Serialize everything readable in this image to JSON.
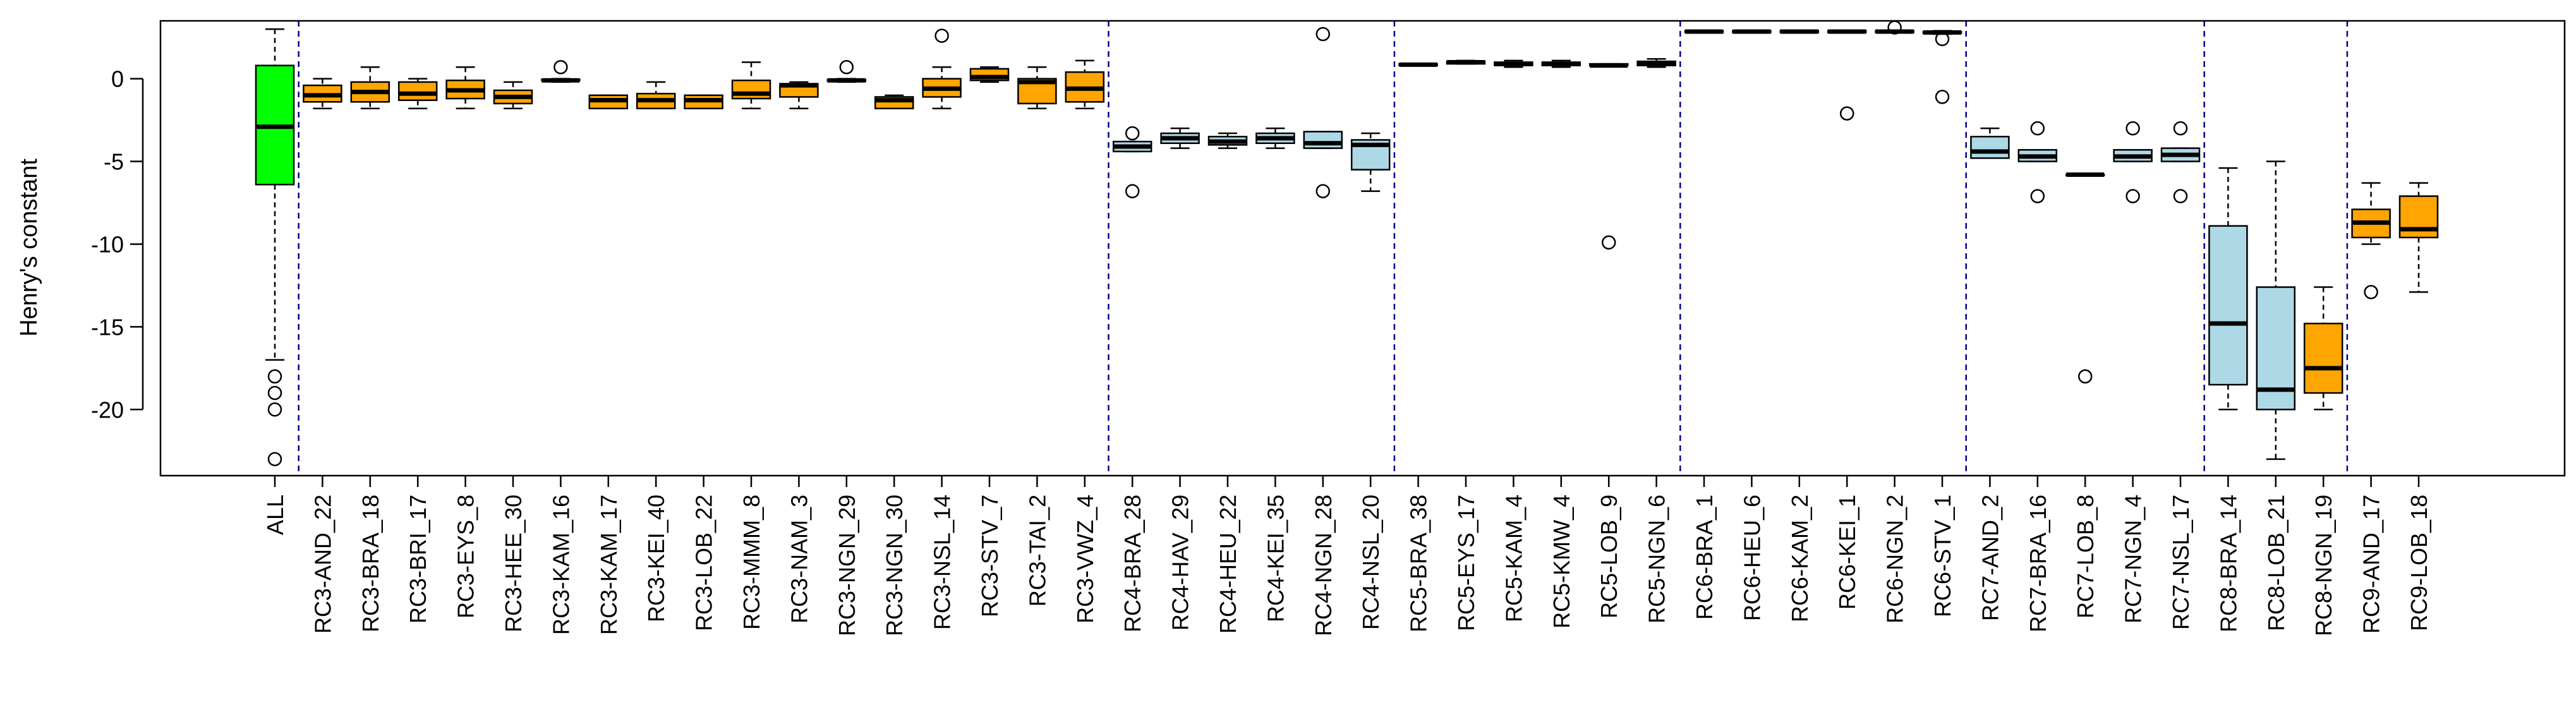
{
  "chart_data": {
    "type": "boxplot",
    "title": "",
    "xlabel": "",
    "ylabel": "Henry's constant",
    "ylim": [
      -24,
      3.5
    ],
    "yticks": [
      0,
      -5,
      -10,
      -15,
      -20
    ],
    "grid": false,
    "legend": "none",
    "colors": {
      "all": "#00ff00",
      "orange": "#ffa500",
      "lightblue": "#add8e6",
      "separator": "#00008b",
      "stroke": "#000000"
    },
    "separators_after": [
      "ALL",
      "RC3-VWZ_4",
      "RC4-NSL_20",
      "RC5-NGN_6",
      "RC6-STV_1",
      "RC7-NSL_17",
      "RC8-NGN_19"
    ],
    "boxes": [
      {
        "label": "ALL",
        "color": "all",
        "whislo": -17,
        "q1": -6.4,
        "med": -2.9,
        "q3": 0.8,
        "whishi": 3.0,
        "fliers": [
          -18,
          -19,
          -20,
          -23
        ]
      },
      {
        "label": "RC3-AND_22",
        "color": "orange",
        "whislo": -1.8,
        "q1": -1.4,
        "med": -1.0,
        "q3": -0.4,
        "whishi": 0.0,
        "fliers": []
      },
      {
        "label": "RC3-BRA_18",
        "color": "orange",
        "whislo": -1.8,
        "q1": -1.4,
        "med": -0.8,
        "q3": -0.2,
        "whishi": 0.7,
        "fliers": []
      },
      {
        "label": "RC3-BRI_17",
        "color": "orange",
        "whislo": -1.8,
        "q1": -1.3,
        "med": -0.9,
        "q3": -0.2,
        "whishi": 0.0,
        "fliers": []
      },
      {
        "label": "RC3-EYS_8",
        "color": "orange",
        "whislo": -1.8,
        "q1": -1.2,
        "med": -0.7,
        "q3": -0.1,
        "whishi": 0.7,
        "fliers": []
      },
      {
        "label": "RC3-HEE_30",
        "color": "orange",
        "whislo": -1.8,
        "q1": -1.5,
        "med": -1.1,
        "q3": -0.7,
        "whishi": -0.2,
        "fliers": []
      },
      {
        "label": "RC3-KAM_16",
        "color": "orange",
        "whislo": -0.2,
        "q1": -0.1,
        "med": -0.1,
        "q3": -0.05,
        "whishi": 0.0,
        "fliers": [
          0.7
        ]
      },
      {
        "label": "RC3-KAM_17",
        "color": "orange",
        "whislo": -1.8,
        "q1": -1.8,
        "med": -1.3,
        "q3": -1.0,
        "whishi": -1.0,
        "fliers": []
      },
      {
        "label": "RC3-KEI_40",
        "color": "orange",
        "whislo": -1.8,
        "q1": -1.8,
        "med": -1.3,
        "q3": -0.9,
        "whishi": -0.2,
        "fliers": []
      },
      {
        "label": "RC3-LOB_22",
        "color": "orange",
        "whislo": -1.8,
        "q1": -1.8,
        "med": -1.3,
        "q3": -1.0,
        "whishi": -1.0,
        "fliers": []
      },
      {
        "label": "RC3-MMM_8",
        "color": "orange",
        "whislo": -1.8,
        "q1": -1.2,
        "med": -0.9,
        "q3": -0.1,
        "whishi": 1.0,
        "fliers": []
      },
      {
        "label": "RC3-NAM_3",
        "color": "orange",
        "whislo": -1.8,
        "q1": -1.1,
        "med": -0.4,
        "q3": -0.3,
        "whishi": -0.2,
        "fliers": []
      },
      {
        "label": "RC3-NGN_29",
        "color": "orange",
        "whislo": -0.2,
        "q1": -0.15,
        "med": -0.1,
        "q3": -0.05,
        "whishi": 0.0,
        "fliers": [
          0.7
        ]
      },
      {
        "label": "RC3-NGN_30",
        "color": "orange",
        "whislo": -1.8,
        "q1": -1.8,
        "med": -1.3,
        "q3": -1.1,
        "whishi": -1.0,
        "fliers": []
      },
      {
        "label": "RC3-NSL_14",
        "color": "orange",
        "whislo": -1.8,
        "q1": -1.1,
        "med": -0.6,
        "q3": 0.0,
        "whishi": 0.7,
        "fliers": [
          2.6
        ]
      },
      {
        "label": "RC3-STV_7",
        "color": "orange",
        "whislo": -0.2,
        "q1": -0.1,
        "med": 0.1,
        "q3": 0.6,
        "whishi": 0.7,
        "fliers": []
      },
      {
        "label": "RC3-TAI_2",
        "color": "orange",
        "whislo": -1.8,
        "q1": -1.5,
        "med": -0.2,
        "q3": 0.0,
        "whishi": 0.7,
        "fliers": []
      },
      {
        "label": "RC3-VWZ_4",
        "color": "orange",
        "whislo": -1.8,
        "q1": -1.4,
        "med": -0.6,
        "q3": 0.4,
        "whishi": 1.1,
        "fliers": []
      },
      {
        "label": "RC4-BRA_28",
        "color": "lightblue",
        "whislo": -4.4,
        "q1": -4.4,
        "med": -4.1,
        "q3": -3.8,
        "whishi": -3.8,
        "fliers": [
          -3.3,
          -6.8
        ]
      },
      {
        "label": "RC4-HAV_29",
        "color": "lightblue",
        "whislo": -4.2,
        "q1": -3.9,
        "med": -3.6,
        "q3": -3.3,
        "whishi": -3.0,
        "fliers": []
      },
      {
        "label": "RC4-HEU_22",
        "color": "lightblue",
        "whislo": -4.2,
        "q1": -4.0,
        "med": -3.8,
        "q3": -3.5,
        "whishi": -3.3,
        "fliers": []
      },
      {
        "label": "RC4-KEI_35",
        "color": "lightblue",
        "whislo": -4.2,
        "q1": -3.9,
        "med": -3.6,
        "q3": -3.3,
        "whishi": -3.0,
        "fliers": []
      },
      {
        "label": "RC4-NGN_28",
        "color": "lightblue",
        "whislo": -4.2,
        "q1": -4.2,
        "med": -3.9,
        "q3": -3.2,
        "whishi": -3.2,
        "fliers": [
          2.7,
          -6.8
        ]
      },
      {
        "label": "RC4-NSL_20",
        "color": "lightblue",
        "whislo": -6.8,
        "q1": -5.5,
        "med": -4.0,
        "q3": -3.7,
        "whishi": -3.3,
        "fliers": []
      },
      {
        "label": "RC5-BRA_38",
        "color": "lightblue",
        "whislo": 0.8,
        "q1": 0.8,
        "med": 0.85,
        "q3": 0.9,
        "whishi": 0.9,
        "fliers": []
      },
      {
        "label": "RC5-EYS_17",
        "color": "lightblue",
        "whislo": 0.9,
        "q1": 0.9,
        "med": 1.0,
        "q3": 1.05,
        "whishi": 1.1,
        "fliers": []
      },
      {
        "label": "RC5-KAM_4",
        "color": "lightblue",
        "whislo": 0.7,
        "q1": 0.8,
        "med": 0.9,
        "q3": 1.0,
        "whishi": 1.1,
        "fliers": []
      },
      {
        "label": "RC5-KMW_4",
        "color": "lightblue",
        "whislo": 0.7,
        "q1": 0.8,
        "med": 0.9,
        "q3": 1.0,
        "whishi": 1.1,
        "fliers": []
      },
      {
        "label": "RC5-LOB_9",
        "color": "lightblue",
        "whislo": 0.8,
        "q1": 0.8,
        "med": 0.8,
        "q3": 0.9,
        "whishi": 0.9,
        "fliers": [
          -9.9
        ]
      },
      {
        "label": "RC5-NGN_6",
        "color": "lightblue",
        "whislo": 0.7,
        "q1": 0.8,
        "med": 0.9,
        "q3": 1.05,
        "whishi": 1.2,
        "fliers": []
      },
      {
        "label": "RC6-BRA_1",
        "color": "lightblue",
        "whislo": 2.8,
        "q1": 2.8,
        "med": 2.85,
        "q3": 2.9,
        "whishi": 2.9,
        "fliers": []
      },
      {
        "label": "RC6-HEU_6",
        "color": "lightblue",
        "whislo": 2.8,
        "q1": 2.8,
        "med": 2.85,
        "q3": 2.9,
        "whishi": 2.9,
        "fliers": []
      },
      {
        "label": "RC6-KAM_2",
        "color": "lightblue",
        "whislo": 2.8,
        "q1": 2.8,
        "med": 2.85,
        "q3": 2.9,
        "whishi": 2.9,
        "fliers": []
      },
      {
        "label": "RC6-KEI_1",
        "color": "lightblue",
        "whislo": 2.8,
        "q1": 2.8,
        "med": 2.85,
        "q3": 2.9,
        "whishi": 2.9,
        "fliers": [
          -2.1
        ]
      },
      {
        "label": "RC6-NGN_2",
        "color": "lightblue",
        "whislo": 2.8,
        "q1": 2.8,
        "med": 2.85,
        "q3": 2.9,
        "whishi": 2.9,
        "fliers": [
          3.1
        ]
      },
      {
        "label": "RC6-STV_1",
        "color": "lightblue",
        "whislo": 2.7,
        "q1": 2.75,
        "med": 2.8,
        "q3": 2.85,
        "whishi": 2.9,
        "fliers": [
          2.4,
          -1.1
        ]
      },
      {
        "label": "RC7-AND_2",
        "color": "lightblue",
        "whislo": -4.8,
        "q1": -4.8,
        "med": -4.4,
        "q3": -3.5,
        "whishi": -3.0,
        "fliers": []
      },
      {
        "label": "RC7-BRA_16",
        "color": "lightblue",
        "whislo": -5.0,
        "q1": -5.0,
        "med": -4.7,
        "q3": -4.3,
        "whishi": -4.3,
        "fliers": [
          -3.0,
          -7.1
        ]
      },
      {
        "label": "RC7-LOB_8",
        "color": "lightblue",
        "whislo": -5.8,
        "q1": -5.8,
        "med": -5.8,
        "q3": -5.8,
        "whishi": -5.8,
        "fliers": [
          -18.0
        ]
      },
      {
        "label": "RC7-NGN_4",
        "color": "lightblue",
        "whislo": -5.0,
        "q1": -5.0,
        "med": -4.7,
        "q3": -4.3,
        "whishi": -4.3,
        "fliers": [
          -3.0,
          -7.1
        ]
      },
      {
        "label": "RC7-NSL_17",
        "color": "lightblue",
        "whislo": -5.0,
        "q1": -5.0,
        "med": -4.6,
        "q3": -4.2,
        "whishi": -4.2,
        "fliers": [
          -3.0,
          -7.1
        ]
      },
      {
        "label": "RC8-BRA_14",
        "color": "lightblue",
        "whislo": -20.0,
        "q1": -18.5,
        "med": -14.8,
        "q3": -8.9,
        "whishi": -5.4,
        "fliers": []
      },
      {
        "label": "RC8-LOB_21",
        "color": "lightblue",
        "whislo": -23.0,
        "q1": -20.0,
        "med": -18.8,
        "q3": -12.6,
        "whishi": -5.0,
        "fliers": []
      },
      {
        "label": "RC8-NGN_19",
        "color": "orange",
        "whislo": -20.0,
        "q1": -19.0,
        "med": -17.5,
        "q3": -14.8,
        "whishi": -12.6,
        "fliers": []
      },
      {
        "label": "RC9-AND_17",
        "color": "orange",
        "whislo": -10.0,
        "q1": -9.6,
        "med": -8.7,
        "q3": -7.9,
        "whishi": -6.3,
        "fliers": [
          -12.9
        ]
      },
      {
        "label": "RC9-LOB_18",
        "color": "orange",
        "whislo": -12.9,
        "q1": -9.6,
        "med": -9.1,
        "q3": -7.1,
        "whishi": -6.3,
        "fliers": []
      }
    ]
  }
}
